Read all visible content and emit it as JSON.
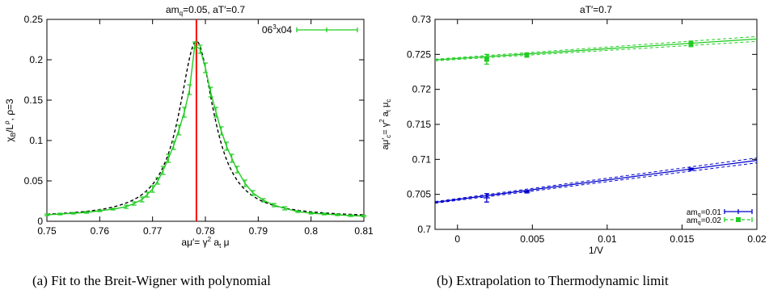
{
  "chart_data": [
    {
      "type": "line",
      "title": "am_q=0.05, aT′=0.7",
      "title_parts": {
        "a": "am",
        "sub": "q",
        "b": "=0.05, aT′=0.7"
      },
      "xlabel": "aμ′= γ² a_t μ",
      "xlabel_parts": {
        "a": "aμ′= γ",
        "sup": "2",
        "b": " a",
        "sub": "t",
        "c": " μ"
      },
      "ylabel": "χ_B/L^ρ, ρ=3",
      "ylabel_parts": {
        "a": "χ",
        "sub": "B",
        "b": "/L",
        "sup": "ρ",
        "c": ", ρ=3"
      },
      "xlim": [
        0.75,
        0.81
      ],
      "ylim": [
        0,
        0.25
      ],
      "xticks": [
        "0.75",
        "0.76",
        "0.77",
        "0.78",
        "0.79",
        "0.8",
        "0.81"
      ],
      "yticks": [
        "0",
        "0.05",
        "0.1",
        "0.15",
        "0.2",
        "0.25"
      ],
      "legend": {
        "label_parts": {
          "a": "06",
          "sup": "3",
          "b": "x04"
        },
        "position": "top-right"
      },
      "peak_line_x": 0.7783,
      "colors": {
        "data": "#22cc22",
        "fit": "#000000",
        "peak": "#ff0000"
      },
      "series": [
        {
          "name": "06³x04",
          "x": [
            0.75,
            0.7525,
            0.755,
            0.7575,
            0.76,
            0.7625,
            0.765,
            0.7665,
            0.768,
            0.769,
            0.77,
            0.771,
            0.772,
            0.773,
            0.774,
            0.775,
            0.776,
            0.777,
            0.778,
            0.779,
            0.78,
            0.781,
            0.782,
            0.783,
            0.784,
            0.785,
            0.786,
            0.7875,
            0.789,
            0.791,
            0.793,
            0.795,
            0.7975,
            0.8,
            0.8025,
            0.805,
            0.8075,
            0.81
          ],
          "y": [
            0.008,
            0.009,
            0.01,
            0.011,
            0.013,
            0.015,
            0.018,
            0.022,
            0.027,
            0.033,
            0.04,
            0.05,
            0.063,
            0.078,
            0.094,
            0.113,
            0.135,
            0.163,
            0.218,
            0.213,
            0.19,
            0.16,
            0.135,
            0.112,
            0.093,
            0.078,
            0.064,
            0.047,
            0.035,
            0.026,
            0.02,
            0.016,
            0.012,
            0.01,
            0.009,
            0.008,
            0.007,
            0.0065
          ],
          "err": [
            0.001,
            0.001,
            0.001,
            0.001,
            0.001,
            0.001,
            0.002,
            0.002,
            0.003,
            0.003,
            0.004,
            0.004,
            0.005,
            0.005,
            0.005,
            0.006,
            0.006,
            0.006,
            0.004,
            0.005,
            0.006,
            0.006,
            0.006,
            0.005,
            0.005,
            0.005,
            0.004,
            0.004,
            0.003,
            0.002,
            0.002,
            0.002,
            0.001,
            0.001,
            0.001,
            0.001,
            0.001,
            0.001
          ]
        }
      ],
      "fit": {
        "style": "dashed",
        "peak_x": 0.7783,
        "peak_y": 0.223,
        "half_width": 0.004,
        "background": 0.0045
      }
    },
    {
      "type": "line",
      "title": "aT′=0.7",
      "xlabel": "1/V",
      "ylabel": "aμ′_c= γ² a_t μ_c",
      "ylabel_parts": {
        "a": "aμ′",
        "sub1": "c",
        "b": "= γ",
        "sup": "2",
        "c": " a",
        "sub2": "t",
        "d": " μ",
        "sub3": "c"
      },
      "xlim": [
        -0.0015,
        0.02
      ],
      "ylim": [
        0.7,
        0.73
      ],
      "xticks": [
        "0",
        "0.005",
        "0.01",
        "0.015",
        "0.02"
      ],
      "yticks": [
        "0.7",
        "0.705",
        "0.71",
        "0.715",
        "0.72",
        "0.725",
        "0.73"
      ],
      "legend_position": "bottom-right",
      "series": [
        {
          "name": "am_q=0.01",
          "legend_parts": {
            "a": "am",
            "sub": "q",
            "b": "=0.01"
          },
          "color": "#0000cc",
          "marker": "plus",
          "x": [
            0.00195,
            0.00463,
            0.0156
          ],
          "y": [
            0.7045,
            0.70535,
            0.7086
          ],
          "err": [
            0.0006,
            0.00015,
            0.00015
          ],
          "fit_y": [
            0.70385,
            0.70985
          ]
        },
        {
          "name": "am_q=0.02",
          "legend_parts": {
            "a": "am",
            "sub": "q",
            "b": "=0.02"
          },
          "color": "#22cc22",
          "marker": "square",
          "x": [
            0.00195,
            0.00463,
            0.0156
          ],
          "y": [
            0.7243,
            0.7249,
            0.7265
          ],
          "err": [
            0.0007,
            0.0003,
            0.0004
          ],
          "fit_y": [
            0.7242,
            0.7272
          ]
        }
      ],
      "fit_x": [
        -0.0015,
        0.02
      ]
    }
  ],
  "captions": {
    "a": "(a)  Fit to the Breit-Wigner with polynomial",
    "b": "(b)  Extrapolation to Thermodynamic limit"
  }
}
